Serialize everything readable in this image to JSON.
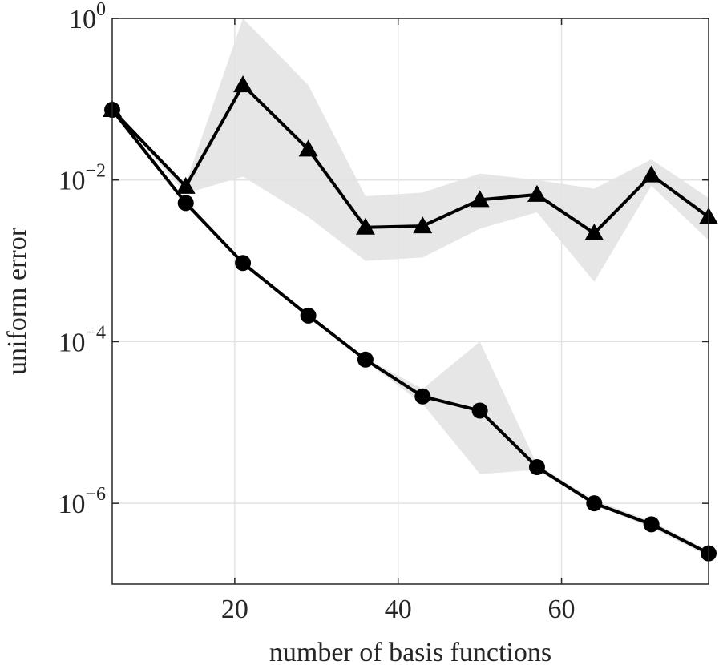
{
  "chart_data": {
    "type": "line",
    "xlabel": "number of basis functions",
    "ylabel": "uniform error",
    "x": [
      5,
      14,
      21,
      29,
      36,
      43,
      50,
      57,
      64,
      71,
      78
    ],
    "series": [
      {
        "color": "#000000",
        "marker": "triangle",
        "values": [
          0.074,
          0.0083,
          0.15,
          0.024,
          0.0026,
          0.0027,
          0.0057,
          0.0066,
          0.0022,
          0.0115,
          0.0035
        ],
        "upper": [
          0.074,
          0.009,
          1,
          0.15,
          0.0063,
          0.007,
          0.012,
          0.01,
          0.0078,
          0.018,
          0.006
        ],
        "lower": [
          0.074,
          0.0068,
          0.011,
          0.0035,
          0.001,
          0.0011,
          0.0025,
          0.004,
          0.00055,
          0.0085,
          0.0018
        ]
      },
      {
        "color": "#000000",
        "marker": "circle",
        "values": [
          0.074,
          0.0052,
          0.00094,
          0.00021,
          6e-05,
          2.1e-05,
          1.4e-05,
          2.8e-06,
          1e-06,
          5.5e-07,
          2.4e-07
        ],
        "upper": [
          0.074,
          0.0055,
          0.001,
          0.00022,
          6.3e-05,
          2.6e-05,
          0.0001,
          3e-06,
          1.1e-06,
          6e-07,
          2.6e-07
        ],
        "lower": [
          0.074,
          0.0049,
          0.0009,
          0.0002,
          5.7e-05,
          1.7e-05,
          2.3e-06,
          2.6e-06,
          9.5e-07,
          5e-07,
          2.2e-07
        ]
      }
    ],
    "band_color": "#e6e6e6",
    "xlim": [
      5,
      78
    ],
    "xticks": [
      20,
      40,
      60
    ],
    "ylim": [
      1e-07,
      1
    ],
    "ylog": true,
    "yticks": [
      {
        "value": 1,
        "label": "10^0"
      },
      {
        "value": 0.01,
        "label": "10^-2"
      },
      {
        "value": 0.0001,
        "label": "10^-4"
      },
      {
        "value": 1e-06,
        "label": "10^-6"
      }
    ],
    "grid": true
  }
}
